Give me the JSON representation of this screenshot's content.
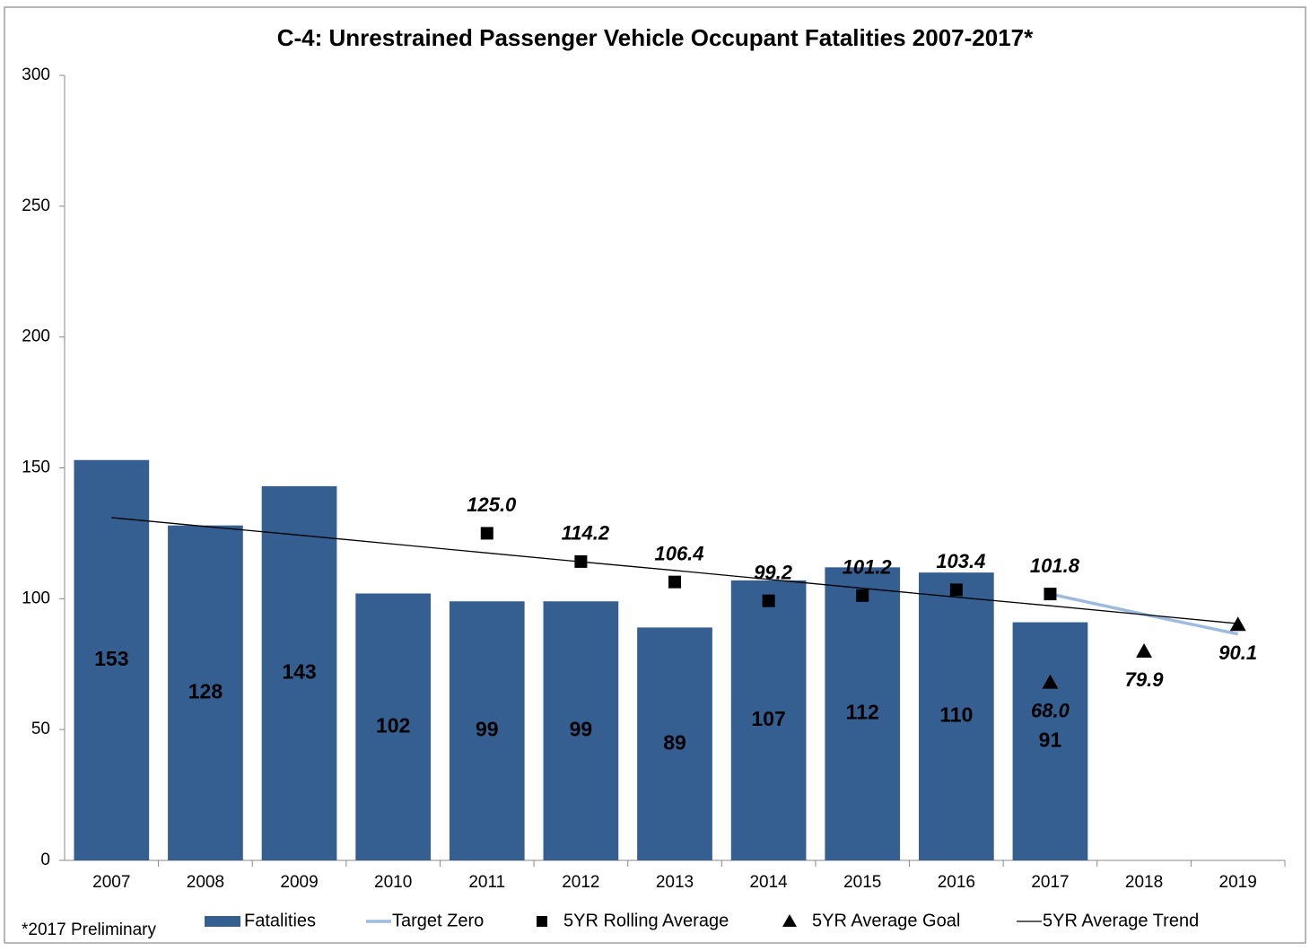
{
  "chart_data": {
    "type": "bar",
    "title": "C-4: Unrestrained Passenger Vehicle Occupant Fatalities 2007-2017*",
    "footnote": "*2017 Preliminary",
    "categories": [
      "2007",
      "2008",
      "2009",
      "2010",
      "2011",
      "2012",
      "2013",
      "2014",
      "2015",
      "2016",
      "2017",
      "2018",
      "2019"
    ],
    "ylim": [
      0,
      300
    ],
    "yticks": [
      0,
      50,
      100,
      150,
      200,
      250,
      300
    ],
    "series": [
      {
        "name": "Fatalities",
        "type": "bar",
        "color": "#355e91",
        "values": [
          153,
          128,
          143,
          102,
          99,
          99,
          89,
          107,
          112,
          110,
          91,
          null,
          null
        ]
      },
      {
        "name": "Target Zero",
        "type": "line",
        "color": "#9dbbe0",
        "values": [
          null,
          null,
          null,
          null,
          null,
          null,
          null,
          null,
          null,
          null,
          101.8,
          94,
          86.5
        ]
      },
      {
        "name": "5YR Rolling Average",
        "type": "scatter",
        "marker": "square",
        "color": "#000000",
        "values": [
          null,
          null,
          null,
          null,
          125,
          114.2,
          106.4,
          99.2,
          101.2,
          103.4,
          101.8,
          null,
          null
        ],
        "value_labels": [
          null,
          null,
          null,
          null,
          "125.0",
          "114.2",
          "106.4",
          "99.2",
          "101.2",
          "103.4",
          "101.8",
          null,
          null
        ]
      },
      {
        "name": "5YR Average Goal",
        "type": "scatter",
        "marker": "triangle",
        "color": "#000000",
        "values": [
          null,
          null,
          null,
          null,
          null,
          null,
          null,
          null,
          null,
          null,
          68,
          79.9,
          90.1
        ],
        "value_labels": [
          null,
          null,
          null,
          null,
          null,
          null,
          null,
          null,
          null,
          null,
          "68.0",
          "79.9",
          "90.1"
        ]
      },
      {
        "name": "5YR Average Trend",
        "type": "line",
        "color": "#000000",
        "values": [
          131,
          127.6,
          124.3,
          120.9,
          117.5,
          114.1,
          110.8,
          107.4,
          104,
          100.6,
          97.3,
          93.9,
          90.5
        ]
      }
    ]
  }
}
